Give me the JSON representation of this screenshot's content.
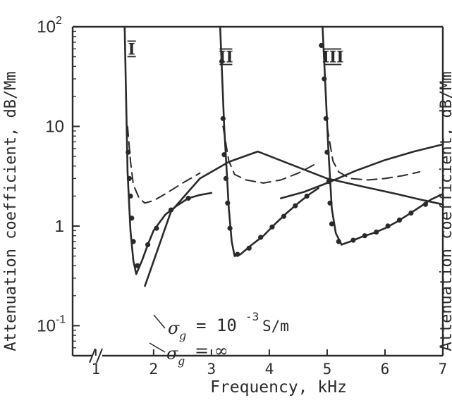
{
  "chart_data": {
    "type": "line",
    "xlabel": "Frequency, kHz",
    "ylabel": "Attenuation coefficient, dB/Mm",
    "right_ylabel": "Attenuation coefficient, dB/Mm",
    "xscale": "linear",
    "yscale": "log",
    "xlim": [
      0.6,
      7
    ],
    "ylim": [
      0.05,
      100
    ],
    "x_tick_labels": [
      "1",
      "2",
      "3",
      "4",
      "5",
      "6",
      "7"
    ],
    "x_ticks": [
      1,
      2,
      3,
      4,
      5,
      6,
      7
    ],
    "y_ticks": [
      {
        "value": 100,
        "base": "10",
        "exp": "2"
      },
      {
        "value": 10,
        "base": "10",
        "exp": ""
      },
      {
        "value": 1,
        "base": "1",
        "exp": ""
      },
      {
        "value": 0.1,
        "base": "10",
        "exp": "-1"
      }
    ],
    "axis_break": true,
    "grid": false,
    "mode_labels": [
      {
        "text": "I",
        "x": 1.62,
        "y": 60
      },
      {
        "text": "II",
        "x": 3.25,
        "y": 50
      },
      {
        "text": "III",
        "x": 5.1,
        "y": 50
      }
    ],
    "annotations": {
      "finite": {
        "sigma": "σ",
        "sub": "g",
        "eq": "= 10",
        "exp": "-3",
        "unit": "S/m"
      },
      "infinite": {
        "sigma": "σ",
        "sub": "g",
        "eq": "= ∞"
      }
    },
    "series": [
      {
        "style": "solid",
        "x": [
          1.5,
          1.55,
          1.6,
          1.65,
          1.7,
          1.8,
          1.9,
          2.0
        ],
        "y": [
          100,
          3.5,
          0.9,
          0.45,
          0.33,
          0.45,
          0.65,
          0.9
        ]
      },
      {
        "style": "solid",
        "x": [
          2.0,
          2.2,
          2.4,
          2.6,
          2.8,
          3.0
        ],
        "y": [
          0.9,
          1.3,
          1.6,
          1.9,
          2.05,
          2.15
        ]
      },
      {
        "style": "solid",
        "x": [
          3.15,
          3.22,
          3.3,
          3.35,
          3.4,
          3.5,
          3.7,
          3.9,
          4.1,
          4.3,
          4.5,
          4.7,
          4.85
        ],
        "y": [
          100,
          10,
          1.5,
          0.7,
          0.5,
          0.52,
          0.65,
          0.8,
          1.05,
          1.35,
          1.7,
          2.1,
          2.4
        ]
      },
      {
        "style": "solid",
        "x": [
          4.92,
          4.97,
          5.02,
          5.08,
          5.15,
          5.25,
          5.4,
          5.6,
          5.8,
          6.0,
          6.2,
          6.4,
          6.6,
          6.8,
          7.0
        ],
        "y": [
          100,
          25,
          6,
          1.5,
          0.85,
          0.65,
          0.7,
          0.78,
          0.85,
          0.95,
          1.1,
          1.3,
          1.55,
          1.85,
          2.1
        ]
      },
      {
        "style": "solid",
        "x": [
          1.85,
          2.3,
          2.8,
          3.3,
          3.8,
          4.4,
          5.0,
          5.6,
          6.2,
          6.6,
          7.0
        ],
        "y": [
          0.25,
          1.4,
          3.0,
          4.4,
          5.6,
          4.1,
          3.0,
          2.5,
          2.1,
          1.85,
          1.65
        ]
      },
      {
        "style": "solid",
        "x": [
          4.2,
          4.6,
          5.0,
          5.5,
          6.0,
          6.5,
          7.0
        ],
        "y": [
          1.9,
          2.2,
          2.7,
          3.6,
          4.6,
          5.6,
          6.6
        ]
      },
      {
        "style": "dashed",
        "x": [
          1.55,
          1.6,
          1.65,
          1.75,
          1.85,
          2.0,
          2.2,
          2.5,
          2.8
        ],
        "y": [
          10,
          4.5,
          2.6,
          1.9,
          1.7,
          1.8,
          2.1,
          2.7,
          3.4
        ]
      },
      {
        "style": "dashed",
        "x": [
          3.2,
          3.3,
          3.4,
          3.6,
          3.9,
          4.2,
          4.5,
          4.8
        ],
        "y": [
          10,
          4.5,
          3.3,
          2.9,
          2.7,
          2.9,
          3.4,
          4.2
        ]
      },
      {
        "style": "dashed",
        "x": [
          5.0,
          5.1,
          5.2,
          5.4,
          5.7,
          6.0,
          6.3,
          6.6
        ],
        "y": [
          10,
          4.5,
          3.5,
          3.0,
          2.9,
          3.0,
          3.2,
          3.5
        ]
      }
    ],
    "markers": [
      {
        "x": 1.56,
        "y": 5.5
      },
      {
        "x": 1.58,
        "y": 3.0
      },
      {
        "x": 1.6,
        "y": 2.0
      },
      {
        "x": 1.62,
        "y": 1.2
      },
      {
        "x": 1.65,
        "y": 0.7
      },
      {
        "x": 1.72,
        "y": 0.4
      },
      {
        "x": 1.9,
        "y": 0.65
      },
      {
        "x": 2.05,
        "y": 0.95
      },
      {
        "x": 2.3,
        "y": 1.45
      },
      {
        "x": 2.6,
        "y": 1.9
      },
      {
        "x": 3.18,
        "y": 45
      },
      {
        "x": 3.2,
        "y": 12
      },
      {
        "x": 3.22,
        "y": 5.2
      },
      {
        "x": 3.25,
        "y": 3.0
      },
      {
        "x": 3.28,
        "y": 1.7
      },
      {
        "x": 3.32,
        "y": 0.95
      },
      {
        "x": 3.45,
        "y": 0.52
      },
      {
        "x": 3.65,
        "y": 0.6
      },
      {
        "x": 3.85,
        "y": 0.77
      },
      {
        "x": 4.05,
        "y": 0.98
      },
      {
        "x": 4.25,
        "y": 1.25
      },
      {
        "x": 4.45,
        "y": 1.6
      },
      {
        "x": 4.65,
        "y": 2.0
      },
      {
        "x": 4.9,
        "y": 65
      },
      {
        "x": 4.95,
        "y": 30
      },
      {
        "x": 4.98,
        "y": 12
      },
      {
        "x": 5.0,
        "y": 5.5
      },
      {
        "x": 5.03,
        "y": 2.8
      },
      {
        "x": 5.05,
        "y": 1.7
      },
      {
        "x": 5.08,
        "y": 1.05
      },
      {
        "x": 5.2,
        "y": 0.7
      },
      {
        "x": 5.45,
        "y": 0.72
      },
      {
        "x": 5.65,
        "y": 0.8
      },
      {
        "x": 5.85,
        "y": 0.87
      },
      {
        "x": 6.05,
        "y": 1.0
      },
      {
        "x": 6.25,
        "y": 1.15
      },
      {
        "x": 6.45,
        "y": 1.35
      },
      {
        "x": 6.7,
        "y": 1.65
      }
    ]
  }
}
